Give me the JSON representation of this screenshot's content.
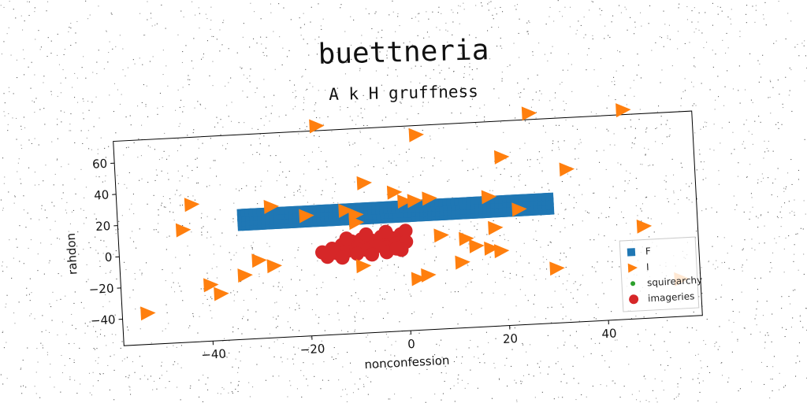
{
  "figure": {
    "suptitle": "buettneria",
    "title": "A k H gruffness"
  },
  "chart_data": {
    "type": "scatter",
    "xlabel": "nonconfession",
    "ylabel": "rahdon",
    "xlim": [
      -58,
      59
    ],
    "ylim": [
      -57,
      74
    ],
    "xticks": [
      -40,
      -20,
      0,
      20,
      40
    ],
    "yticks": [
      -40,
      -20,
      0,
      20,
      40,
      60
    ],
    "grid": false,
    "legend_position": "lower-right",
    "series": [
      {
        "name": "F",
        "marker": "square",
        "color": "#1f77b4",
        "x_range": [
          -33,
          30
        ],
        "y_range": [
          15,
          24
        ]
      },
      {
        "name": "I",
        "marker": "triangle-right",
        "color": "#ff7f0e",
        "points": [
          [
            -17,
            77
          ],
          [
            3,
            68
          ],
          [
            26,
            78
          ],
          [
            45,
            77
          ],
          [
            20,
            51
          ],
          [
            33,
            41
          ],
          [
            -8,
            39
          ],
          [
            -43,
            31
          ],
          [
            -27,
            27
          ],
          [
            -2,
            32
          ],
          [
            0,
            26
          ],
          [
            2,
            26
          ],
          [
            5,
            27
          ],
          [
            17,
            26
          ],
          [
            -20,
            20
          ],
          [
            -12,
            22
          ],
          [
            -10,
            19
          ],
          [
            23,
            17
          ],
          [
            -45,
            15
          ],
          [
            -10,
            14
          ],
          [
            7,
            3
          ],
          [
            12,
            0
          ],
          [
            18,
            6
          ],
          [
            14,
            -5
          ],
          [
            -30,
            -7
          ],
          [
            17,
            -7
          ],
          [
            19,
            -9
          ],
          [
            -27,
            -11
          ],
          [
            -33,
            -16
          ],
          [
            11,
            -15
          ],
          [
            -40,
            -21
          ],
          [
            -38,
            -27
          ],
          [
            -9,
            -14
          ],
          [
            2,
            -24
          ],
          [
            4,
            -22
          ],
          [
            30,
            -22
          ],
          [
            -53,
            -37
          ],
          [
            48,
            2
          ],
          [
            55,
            -33
          ]
        ]
      },
      {
        "name": "squirearchy",
        "marker": "dot",
        "color": "#2ca02c",
        "points": []
      },
      {
        "name": "imageries",
        "marker": "circle",
        "color": "#d62728",
        "points": [
          [
            -15,
            -2
          ],
          [
            -13,
            0
          ],
          [
            -11,
            2
          ],
          [
            -9,
            3
          ],
          [
            -7,
            2
          ],
          [
            -5,
            4
          ],
          [
            -3,
            3
          ],
          [
            -1,
            5
          ],
          [
            0,
            7
          ],
          [
            -14,
            -5
          ],
          [
            -12,
            -4
          ],
          [
            -10,
            -3
          ],
          [
            -8,
            -4
          ],
          [
            -6,
            -2
          ],
          [
            -4,
            -3
          ],
          [
            -2,
            -1
          ],
          [
            0,
            0
          ],
          [
            -16,
            -7
          ],
          [
            -13,
            -8
          ],
          [
            -10,
            -6
          ],
          [
            -7,
            -7
          ],
          [
            -4,
            -6
          ],
          [
            -1,
            -5
          ],
          [
            -12,
            4
          ],
          [
            -8,
            6
          ],
          [
            -4,
            7
          ],
          [
            -2,
            -4
          ],
          [
            -17,
            -4
          ]
        ]
      }
    ]
  }
}
